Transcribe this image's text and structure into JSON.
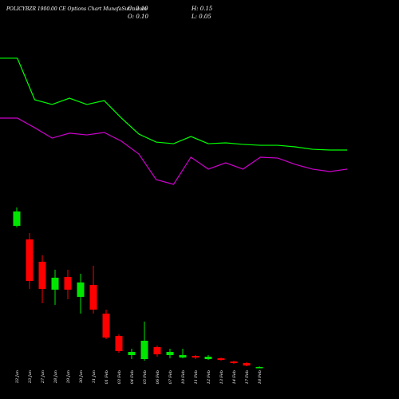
{
  "chart_data": [
    {
      "type": "candlestick",
      "title": "POLICYBZR 1900.00 CE Options Chart MunafaSutra.com",
      "ohlc_labels": [
        "C: 0.10",
        "H: 0.15",
        "O: 0.10",
        "L: 0.05"
      ],
      "categories": [
        "22 Jan",
        "23 Jan",
        "27 Jan",
        "28 Jan",
        "29 Jan",
        "30 Jan",
        "31 Jan",
        "01 Feb",
        "03 Feb",
        "04 Feb",
        "05 Feb",
        "06 Feb",
        "07 Feb",
        "10 Feb",
        "11 Feb",
        "12 Feb",
        "13 Feb",
        "14 Feb",
        "17 Feb",
        "18 Feb"
      ],
      "open": [
        8.95,
        8.1,
        6.7,
        4.95,
        5.75,
        4.5,
        5.25,
        3.45,
        2.05,
        0.85,
        0.6,
        1.35,
        0.85,
        0.7,
        0.8,
        0.6,
        0.65,
        0.45,
        0.35,
        0.1
      ],
      "high": [
        10.1,
        8.5,
        7.1,
        6.2,
        6.2,
        5.95,
        6.45,
        3.7,
        2.15,
        1.25,
        2.95,
        1.45,
        1.25,
        1.25,
        0.85,
        0.85,
        0.7,
        0.5,
        0.4,
        0.15
      ],
      "low": [
        8.85,
        5.0,
        4.1,
        4.0,
        4.35,
        3.45,
        3.45,
        1.85,
        1.0,
        0.6,
        0.5,
        0.75,
        0.65,
        0.65,
        0.6,
        0.55,
        0.5,
        0.3,
        0.15,
        0.05
      ],
      "close": [
        9.85,
        5.5,
        5.0,
        5.7,
        4.95,
        5.4,
        3.7,
        1.95,
        1.1,
        1.05,
        1.75,
        0.9,
        1.05,
        0.85,
        0.7,
        0.75,
        0.55,
        0.35,
        0.2,
        0.1
      ],
      "up_color": "#00e600",
      "down_color": "#ff0000",
      "ylim": [
        0,
        10.35
      ]
    },
    {
      "type": "line",
      "series": [
        {
          "color": "#00ff00",
          "values": [
            92.8,
            92.8,
            63.9,
            60.6,
            65,
            60.6,
            63.3,
            51.1,
            40,
            34.4,
            33.3,
            38.3,
            33.3,
            33.9,
            32.8,
            32.2,
            32.2,
            31.1,
            29.4,
            28.9,
            28.9
          ]
        },
        {
          "color": "#cc00cc",
          "values": [
            51.1,
            51.1,
            44.4,
            37.2,
            40.6,
            39.4,
            41.1,
            35,
            26.1,
            8.3,
            5,
            23.9,
            15.6,
            20,
            15.6,
            23.9,
            23.3,
            18.9,
            15.6,
            13.9,
            15.6
          ]
        }
      ],
      "ylim": [
        0,
        100
      ]
    }
  ]
}
